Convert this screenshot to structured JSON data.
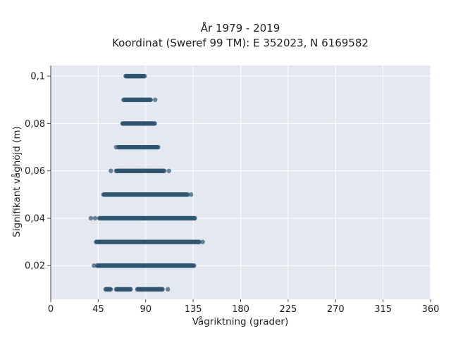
{
  "chart_data": {
    "type": "scatter",
    "title_lines": [
      "År 1979 - 2019",
      "Koordinat (Sweref 99 TM): E 352023, N 6169582"
    ],
    "xlabel": "Vågriktning (grader)",
    "ylabel": "Signifikant våghöjd (m)",
    "xlim": [
      0,
      360
    ],
    "ylim": [
      0.0058,
      0.1045
    ],
    "x_ticks": [
      0,
      45,
      90,
      135,
      180,
      225,
      270,
      315,
      360
    ],
    "x_tick_labels": [
      "0",
      "45",
      "90",
      "135",
      "180",
      "225",
      "270",
      "315",
      "360"
    ],
    "y_ticks": [
      0.02,
      0.04,
      0.06,
      0.08,
      0.1
    ],
    "y_tick_labels": [
      "0,02",
      "0,04",
      "0,06",
      "0,08",
      "0,1"
    ],
    "grid": true,
    "marker_color": "#2f5570",
    "plot_background": "#e5e8f1",
    "bands": [
      {
        "y": 0.01,
        "segments": [
          [
            52,
            57
          ],
          [
            62,
            76
          ],
          [
            82,
            106
          ]
        ],
        "extra_x": [
          111
        ]
      },
      {
        "y": 0.02,
        "segments": [
          [
            44,
            136
          ]
        ],
        "extra_x": [
          41
        ]
      },
      {
        "y": 0.03,
        "segments": [
          [
            43,
            141
          ]
        ],
        "extra_x": [
          144
        ]
      },
      {
        "y": 0.04,
        "segments": [
          [
            46,
            137
          ]
        ],
        "extra_x": [
          38,
          42
        ]
      },
      {
        "y": 0.05,
        "segments": [
          [
            50,
            130
          ]
        ],
        "extra_x": [
          133
        ]
      },
      {
        "y": 0.06,
        "segments": [
          [
            62,
            108
          ]
        ],
        "extra_x": [
          57,
          112
        ]
      },
      {
        "y": 0.07,
        "segments": [
          [
            64,
            102
          ]
        ],
        "extra_x": [
          62
        ]
      },
      {
        "y": 0.08,
        "segments": [
          [
            68,
            99
          ]
        ],
        "extra_x": []
      },
      {
        "y": 0.09,
        "segments": [
          [
            69,
            95
          ]
        ],
        "extra_x": [
          99
        ]
      },
      {
        "y": 0.1,
        "segments": [
          [
            71,
            89
          ]
        ],
        "extra_x": []
      }
    ]
  }
}
